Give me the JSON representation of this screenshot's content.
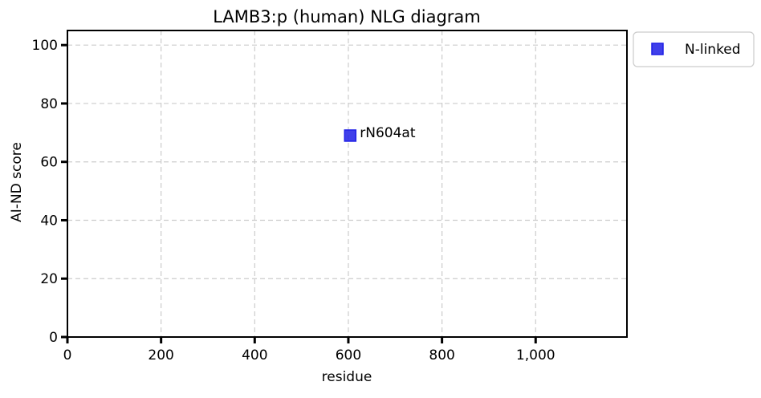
{
  "chart_data": {
    "type": "scatter",
    "title": "LAMB3:p (human) NLG diagram",
    "xlabel": "residue",
    "ylabel": "AI-ND score",
    "xlim": [
      0,
      1195
    ],
    "ylim": [
      0,
      105
    ],
    "xticks": [
      0,
      200,
      400,
      600,
      800,
      1000
    ],
    "xtick_labels": [
      "0",
      "200",
      "400",
      "600",
      "800",
      "1,000"
    ],
    "yticks": [
      0,
      20,
      40,
      60,
      80,
      100
    ],
    "ytick_labels": [
      "0",
      "20",
      "40",
      "60",
      "80",
      "100"
    ],
    "grid": true,
    "legend": {
      "placement": "outside top-right",
      "entries": [
        "N-linked"
      ]
    },
    "series": [
      {
        "name": "N-linked",
        "color": "#1f1fe6",
        "marker": "square",
        "points": [
          {
            "x": 604,
            "y": 69,
            "label": "rN604at"
          }
        ]
      }
    ]
  }
}
